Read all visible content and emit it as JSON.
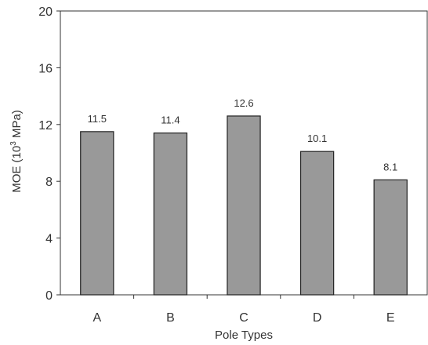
{
  "chart_data": {
    "type": "bar",
    "categories": [
      "A",
      "B",
      "C",
      "D",
      "E"
    ],
    "values": [
      11.5,
      11.4,
      12.6,
      10.1,
      8.1
    ],
    "data_labels": [
      "11.5",
      "11.4",
      "12.6",
      "10.1",
      "8.1"
    ],
    "xlabel": "Pole Types",
    "ylabel_main": "MOE (10",
    "ylabel_sup": "3",
    "ylabel_tail": " MPa)",
    "ylim": [
      0,
      20
    ],
    "yticks": [
      0,
      4,
      8,
      12,
      16,
      20
    ],
    "grid": false,
    "bar_color": "#999999",
    "bar_edge_color": "#222222"
  }
}
